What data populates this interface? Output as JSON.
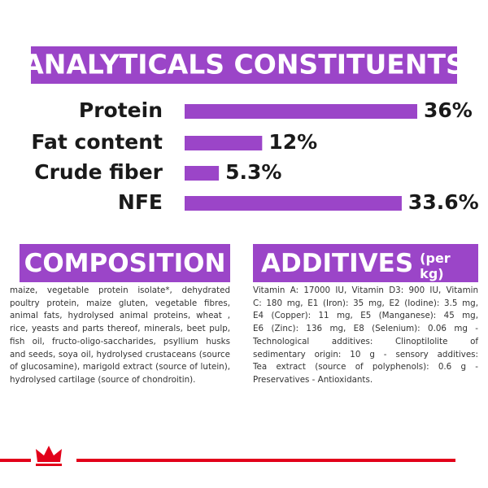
{
  "chart_data": {
    "type": "bar",
    "orientation": "horizontal",
    "title": "ANALYTICALS CONSTITUENTS",
    "categories": [
      "Protein",
      "Fat content",
      "Crude fiber",
      "NFE"
    ],
    "values": [
      36,
      12,
      5.3,
      33.6
    ],
    "value_labels": [
      "36%",
      "12%",
      "5.3%",
      "33.6%"
    ],
    "color": "#9b45c8"
  },
  "composition": {
    "title": "COMPOSITION",
    "lines": [
      "maize, vegetable protein isolate*, dehydrated",
      "poultry protein, maize gluten, vegetable fibres,",
      "animal fats, hydrolysed animal proteins, wheat ,",
      "rice, yeasts and parts thereof, minerals, beet pulp,",
      "fish oil, fructo-oligo-saccharides, psyllium husks",
      "and seeds, soya oil, hydrolysed crustaceans (source",
      "of glucosamine), marigold extract (source of lutein),",
      "hydrolysed cartilage (source of chondroitin)."
    ]
  },
  "additives": {
    "title": "ADDITIVES",
    "unit": "(per kg)",
    "lines": [
      "Vitamin A: 17000 IU, Vitamin D3: 900 IU, Vitamin",
      "C: 180 mg, E1 (Iron): 35 mg, E2 (Iodine): 3.5 mg,",
      "E4 (Copper): 11 mg, E5 (Manganese): 45 mg,",
      "E6 (Zinc): 136 mg, E8 (Selenium): 0.06 mg -",
      "Technological additives: Clinoptilolite of",
      "sedimentary origin: 10 g - sensory additives:",
      "Tea extract (source of polyphenols): 0.6 g -",
      "Preservatives - Antioxidants."
    ]
  }
}
